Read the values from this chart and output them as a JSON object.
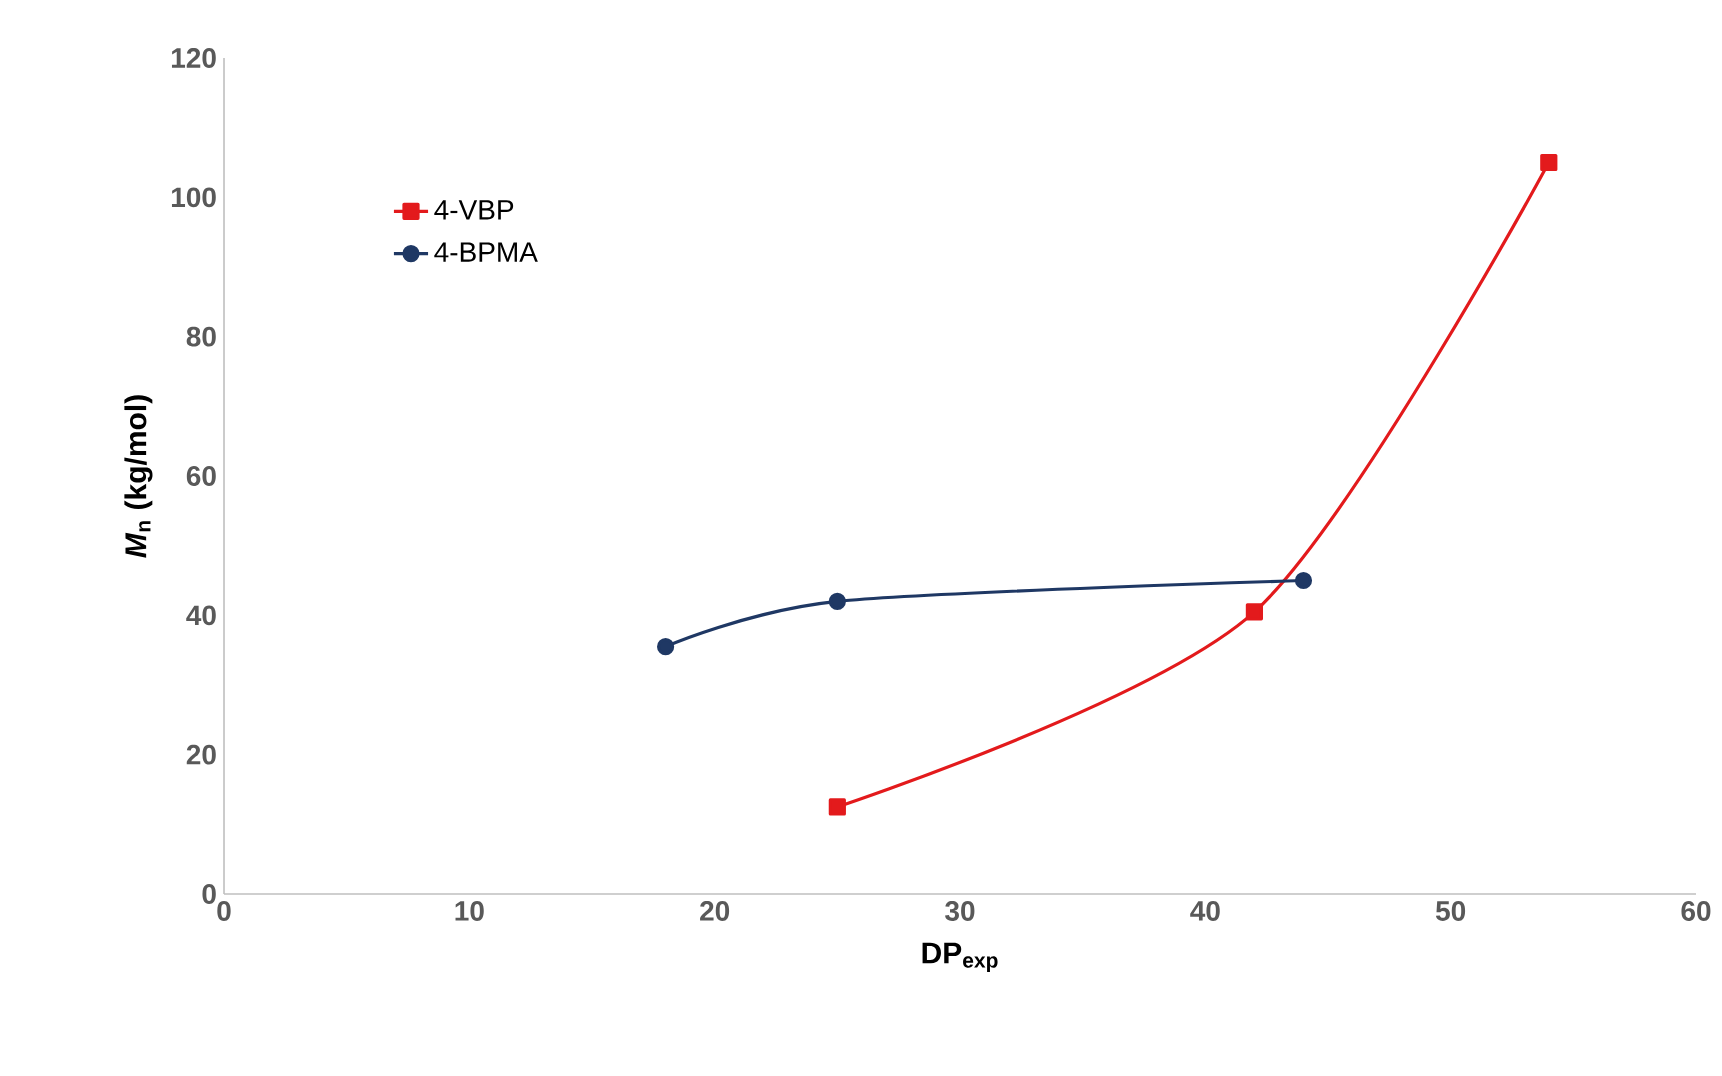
{
  "chart_data": {
    "type": "line",
    "xlabel": "DP$_{exp}$",
    "ylabel": "*M*$_{n}$ (kg/mol)",
    "xlim": [
      0,
      60
    ],
    "xticks": [
      0,
      10,
      20,
      30,
      40,
      50,
      60
    ],
    "ylim": [
      0,
      120
    ],
    "yticks": [
      0,
      20,
      40,
      60,
      80,
      100,
      120
    ],
    "grid": false,
    "legend": "top left",
    "series": [
      {
        "name": "4-VBP",
        "color": "#e31a1c",
        "marker": "square",
        "x": [
          25,
          42,
          54
        ],
        "values": [
          12.5,
          40.5,
          105
        ]
      },
      {
        "name": "4-BPMA",
        "color": "#1f3864",
        "marker": "circle",
        "x": [
          18,
          25,
          44
        ],
        "values": [
          35.5,
          42,
          45
        ]
      }
    ]
  }
}
